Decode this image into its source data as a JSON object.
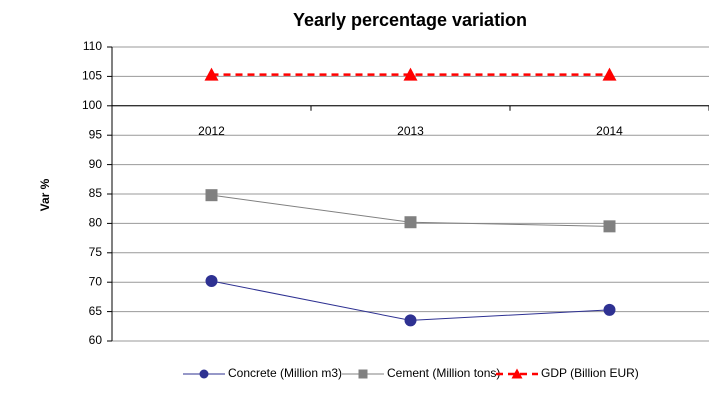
{
  "chart_data": {
    "type": "line",
    "title": "Yearly percentage variation",
    "y_label": "Var %",
    "categories": [
      "2012",
      "2013",
      "2014"
    ],
    "series": [
      {
        "name": "Concrete (Million m3)",
        "color": "#2e3192",
        "marker": "circle",
        "dashed": false,
        "values": [
          70.2,
          63.5,
          65.3
        ]
      },
      {
        "name": "Cement (Million tons)",
        "color": "#808080",
        "marker": "square",
        "dashed": false,
        "values": [
          84.8,
          80.2,
          79.5
        ]
      },
      {
        "name": "GDP (Billion EUR)",
        "color": "#ff0000",
        "marker": "triangle",
        "dashed": true,
        "values": [
          105.3,
          105.3,
          105.3
        ]
      }
    ],
    "ylim": [
      60,
      110
    ],
    "yticks": [
      60,
      65,
      70,
      75,
      80,
      85,
      90,
      95,
      100,
      105,
      110
    ],
    "x_axis_crossing": 100,
    "grid": true,
    "legend": "bottom"
  }
}
